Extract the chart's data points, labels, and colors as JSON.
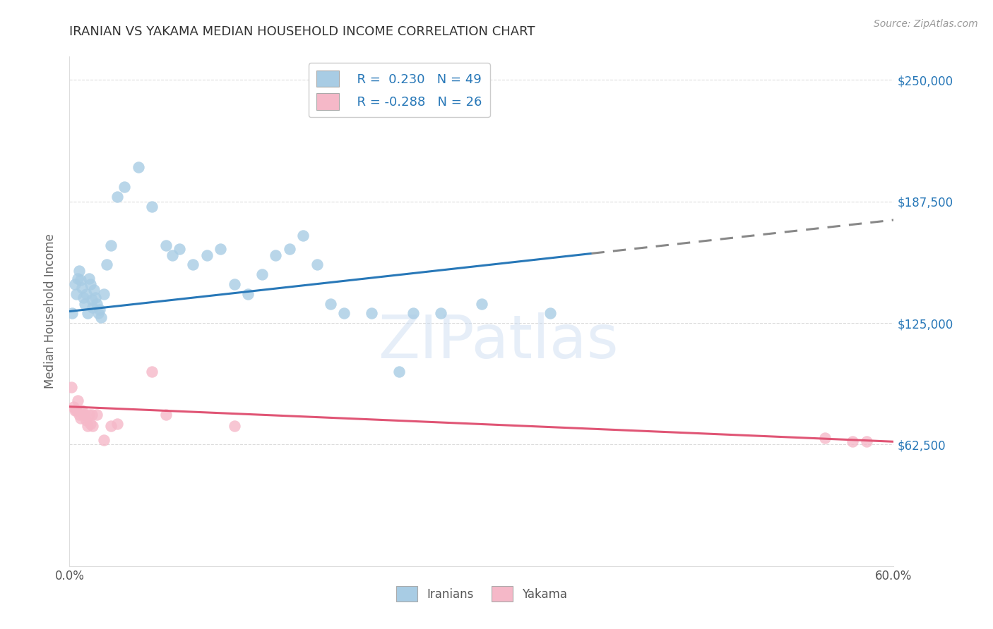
{
  "title": "IRANIAN VS YAKAMA MEDIAN HOUSEHOLD INCOME CORRELATION CHART",
  "source": "Source: ZipAtlas.com",
  "ylabel": "Median Household Income",
  "yticks": [
    0,
    62500,
    125000,
    187500,
    250000
  ],
  "ytick_labels": [
    "",
    "$62,500",
    "$125,000",
    "$187,500",
    "$250,000"
  ],
  "xlim": [
    0.0,
    60.0
  ],
  "ylim": [
    0,
    262000
  ],
  "watermark": "ZIPatlas",
  "blue_color": "#a8cce4",
  "blue_line_color": "#2878b8",
  "blue_dashed_color": "#888888",
  "pink_color": "#f5b8c8",
  "pink_line_color": "#e05575",
  "blue_scatter_x": [
    0.2,
    0.4,
    0.5,
    0.6,
    0.7,
    0.8,
    0.9,
    1.0,
    1.1,
    1.2,
    1.3,
    1.4,
    1.5,
    1.6,
    1.7,
    1.8,
    1.9,
    2.0,
    2.1,
    2.2,
    2.3,
    2.5,
    2.7,
    3.0,
    3.5,
    4.0,
    5.0,
    6.0,
    7.0,
    7.5,
    8.0,
    9.0,
    10.0,
    11.0,
    12.0,
    13.0,
    14.0,
    15.0,
    16.0,
    17.0,
    18.0,
    19.0,
    20.0,
    22.0,
    24.0,
    25.0,
    27.0,
    30.0,
    35.0
  ],
  "blue_scatter_y": [
    130000,
    145000,
    140000,
    148000,
    152000,
    147000,
    143000,
    138000,
    135000,
    140000,
    130000,
    148000,
    145000,
    137000,
    133000,
    142000,
    138000,
    135000,
    130000,
    132000,
    128000,
    140000,
    155000,
    165000,
    190000,
    195000,
    205000,
    185000,
    165000,
    160000,
    163000,
    155000,
    160000,
    163000,
    145000,
    140000,
    150000,
    160000,
    163000,
    170000,
    155000,
    135000,
    130000,
    130000,
    100000,
    130000,
    130000,
    135000,
    130000
  ],
  "pink_scatter_x": [
    0.15,
    0.3,
    0.4,
    0.5,
    0.6,
    0.7,
    0.8,
    0.9,
    1.0,
    1.1,
    1.2,
    1.3,
    1.4,
    1.5,
    1.6,
    1.7,
    2.0,
    2.5,
    3.0,
    3.5,
    6.0,
    7.0,
    12.0,
    55.0,
    57.0,
    58.0
  ],
  "pink_scatter_y": [
    92000,
    82000,
    80000,
    80000,
    85000,
    78000,
    76000,
    80000,
    78000,
    78000,
    75000,
    72000,
    78000,
    73000,
    78000,
    72000,
    78000,
    65000,
    72000,
    73000,
    100000,
    78000,
    72000,
    66000,
    64000,
    64000
  ],
  "blue_trend_x0": 0.0,
  "blue_trend_y0": 131000,
  "blue_trend_x1": 60.0,
  "blue_trend_y1": 178000,
  "blue_solid_x_end": 38.0,
  "pink_trend_x0": 0.0,
  "pink_trend_y0": 82000,
  "pink_trend_x1": 60.0,
  "pink_trend_y1": 64000,
  "grid_color": "#cccccc",
  "title_color": "#333333",
  "axis_label_color": "#2878b8",
  "watermark_color": "#c8daf0",
  "watermark_alpha": 0.45,
  "legend_blue_label": "R =  0.230   N = 49",
  "legend_pink_label": "R = -0.288   N = 26"
}
